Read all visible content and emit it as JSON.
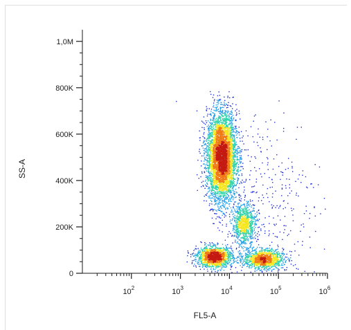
{
  "chart_data": {
    "type": "scatter",
    "title": "",
    "xlabel": "FL5-A",
    "ylabel": "SS-A",
    "x_scale": "log",
    "xlim": [
      10,
      1000000
    ],
    "ylim": [
      0,
      1050000
    ],
    "grid": false,
    "x_tick_labels": [
      {
        "value": 100,
        "base": "10",
        "exp": "2"
      },
      {
        "value": 1000,
        "base": "10",
        "exp": "3"
      },
      {
        "value": 10000,
        "base": "10",
        "exp": "4"
      },
      {
        "value": 100000,
        "base": "10",
        "exp": "5"
      },
      {
        "value": 1000000,
        "base": "10",
        "exp": "6"
      }
    ],
    "y_tick_labels": [
      {
        "value": 0,
        "label": "0"
      },
      {
        "value": 200000,
        "label": "200K"
      },
      {
        "value": 400000,
        "label": "400K"
      },
      {
        "value": 600000,
        "label": "600K"
      },
      {
        "value": 800000,
        "label": "800K"
      },
      {
        "value": 1000000,
        "label": "1,0M"
      }
    ],
    "density_colormap": [
      "#1f2bd6",
      "#1f9be8",
      "#2fd3a8",
      "#f6e51b",
      "#f07b16",
      "#c41a12"
    ],
    "point_color": "#2230c9",
    "populations": [
      {
        "x_center": 7000,
        "x_spread_decades": 0.15,
        "y_center": 500000,
        "y_spread": 95000,
        "share": 0.55
      },
      {
        "x_center": 20000,
        "x_spread_decades": 0.12,
        "y_center": 210000,
        "y_spread": 45000,
        "share": 0.1
      },
      {
        "x_center": 5000,
        "x_spread_decades": 0.18,
        "y_center": 70000,
        "y_spread": 22000,
        "share": 0.17
      },
      {
        "x_center": 50000,
        "x_spread_decades": 0.2,
        "y_center": 60000,
        "y_spread": 20000,
        "share": 0.14
      },
      {
        "x_center": 60000,
        "x_spread_decades": 0.55,
        "y_center": 320000,
        "y_spread": 200000,
        "share": 0.04
      }
    ]
  }
}
